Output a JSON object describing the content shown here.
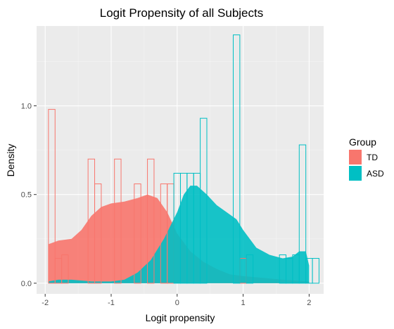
{
  "chart_data": {
    "type": "histogram-density",
    "title": "Logit Propensity of all Subjects",
    "xlabel": "Logit propensity",
    "ylabel": "Density",
    "xlim": [
      -2.13,
      2.22
    ],
    "ylim": [
      -0.06,
      1.45
    ],
    "x_ticks": [
      -2,
      -1,
      0,
      1,
      2
    ],
    "x_tick_labels": [
      "-2",
      "-1",
      "0",
      "1",
      "2"
    ],
    "y_ticks": [
      0.0,
      0.5,
      1.0
    ],
    "y_tick_labels": [
      "0.0",
      "0.5",
      "1.0"
    ],
    "grid": true,
    "bin_width": 0.1,
    "legend": {
      "title": "Group",
      "position": "right",
      "entries": [
        {
          "label": "TD",
          "color": "#F8766D"
        },
        {
          "label": "ASD",
          "color": "#00BFC4"
        }
      ]
    },
    "histograms": [
      {
        "name": "TD",
        "color": "#F8766D",
        "bins": [
          {
            "x0": -1.95,
            "x1": -1.85,
            "value": 0.98
          },
          {
            "x0": -1.85,
            "x1": -1.75,
            "value": 0.14
          },
          {
            "x0": -1.75,
            "x1": -1.65,
            "value": 0.16
          },
          {
            "x0": -1.35,
            "x1": -1.25,
            "value": 0.7
          },
          {
            "x0": -1.25,
            "x1": -1.15,
            "value": 0.56
          },
          {
            "x0": -0.95,
            "x1": -0.85,
            "value": 0.7
          },
          {
            "x0": -0.65,
            "x1": -0.55,
            "value": 0.56
          },
          {
            "x0": -0.45,
            "x1": -0.35,
            "value": 0.7
          },
          {
            "x0": -0.25,
            "x1": -0.15,
            "value": 0.56
          },
          {
            "x0": -0.15,
            "x1": -0.05,
            "value": 0.56
          },
          {
            "x0": 0.95,
            "x1": 1.05,
            "value": 0.14
          }
        ]
      },
      {
        "name": "ASD",
        "color": "#00BFC4",
        "bins": [
          {
            "x0": -0.05,
            "x1": 0.05,
            "value": 0.62
          },
          {
            "x0": 0.05,
            "x1": 0.15,
            "value": 0.62
          },
          {
            "x0": 0.15,
            "x1": 0.25,
            "value": 0.62
          },
          {
            "x0": 0.25,
            "x1": 0.35,
            "value": 0.62
          },
          {
            "x0": 0.35,
            "x1": 0.45,
            "value": 0.93
          },
          {
            "x0": 0.85,
            "x1": 0.95,
            "value": 1.4
          },
          {
            "x0": 1.05,
            "x1": 1.15,
            "value": 0.16
          },
          {
            "x0": 1.55,
            "x1": 1.65,
            "value": 0.16
          },
          {
            "x0": 1.65,
            "x1": 1.75,
            "value": 0.14
          },
          {
            "x0": 1.75,
            "x1": 1.85,
            "value": 0.16
          },
          {
            "x0": 1.85,
            "x1": 1.95,
            "value": 0.78
          },
          {
            "x0": 1.95,
            "x1": 2.05,
            "value": 0.14
          },
          {
            "x0": 2.05,
            "x1": 2.15,
            "value": 0.14
          }
        ]
      }
    ],
    "densities": [
      {
        "name": "TD",
        "color": "#F8766D",
        "points": [
          [
            -1.95,
            0.22
          ],
          [
            -1.8,
            0.24
          ],
          [
            -1.6,
            0.25
          ],
          [
            -1.45,
            0.3
          ],
          [
            -1.3,
            0.38
          ],
          [
            -1.15,
            0.43
          ],
          [
            -1.0,
            0.45
          ],
          [
            -0.8,
            0.46
          ],
          [
            -0.6,
            0.48
          ],
          [
            -0.45,
            0.5
          ],
          [
            -0.3,
            0.48
          ],
          [
            -0.15,
            0.4
          ],
          [
            0.0,
            0.28
          ],
          [
            0.2,
            0.18
          ],
          [
            0.4,
            0.12
          ],
          [
            0.6,
            0.08
          ],
          [
            0.8,
            0.05
          ],
          [
            1.0,
            0.04
          ],
          [
            1.3,
            0.03
          ],
          [
            1.6,
            0.02
          ],
          [
            2.0,
            0.01
          ]
        ]
      },
      {
        "name": "ASD",
        "color": "#00BFC4",
        "points": [
          [
            -1.95,
            0.01
          ],
          [
            -1.8,
            0.02
          ],
          [
            -1.6,
            0.02
          ],
          [
            -1.3,
            0.01
          ],
          [
            -1.0,
            0.01
          ],
          [
            -0.8,
            0.02
          ],
          [
            -0.6,
            0.06
          ],
          [
            -0.4,
            0.13
          ],
          [
            -0.2,
            0.25
          ],
          [
            0.0,
            0.4
          ],
          [
            0.1,
            0.5
          ],
          [
            0.2,
            0.55
          ],
          [
            0.3,
            0.55
          ],
          [
            0.45,
            0.5
          ],
          [
            0.6,
            0.44
          ],
          [
            0.75,
            0.4
          ],
          [
            0.9,
            0.36
          ],
          [
            1.0,
            0.3
          ],
          [
            1.1,
            0.25
          ],
          [
            1.2,
            0.2
          ],
          [
            1.4,
            0.16
          ],
          [
            1.6,
            0.14
          ],
          [
            1.75,
            0.15
          ],
          [
            1.85,
            0.18
          ],
          [
            1.95,
            0.18
          ],
          [
            2.0,
            0.1
          ]
        ]
      }
    ]
  }
}
